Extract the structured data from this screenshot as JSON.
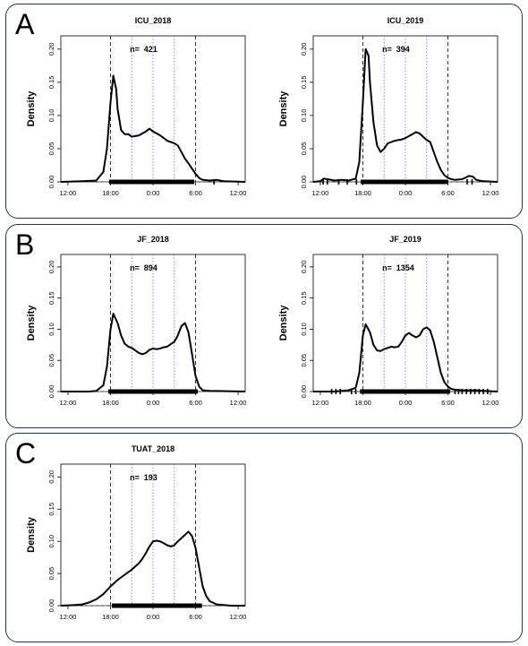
{
  "panels": [
    {
      "letter": "A",
      "charts": [
        0,
        1
      ]
    },
    {
      "letter": "B",
      "charts": [
        2,
        3
      ]
    },
    {
      "letter": "C",
      "charts": [
        4
      ]
    }
  ],
  "chart_data": [
    {
      "type": "line",
      "title": "ICU_2018",
      "n_label": "n=",
      "n_value": "421",
      "ylabel": "Density",
      "x_ticks": [
        "12:00",
        "18:00",
        "0:00",
        "6:00",
        "12:00"
      ],
      "x_tick_hours": [
        -12,
        -6,
        0,
        6,
        12
      ],
      "y_ticks": [
        "0.00",
        "0.05",
        "0.10",
        "0.15",
        "0.20"
      ],
      "y_tick_values": [
        0.0,
        0.05,
        0.1,
        0.15,
        0.2
      ],
      "xlim": [
        -13,
        13
      ],
      "ylim": [
        0,
        0.22
      ],
      "vlines_dashed_black": [
        -6,
        6
      ],
      "vlines_dotted_blue": [
        -3,
        0,
        3
      ],
      "x": [
        -13,
        -10,
        -8,
        -7,
        -6.5,
        -6,
        -5.6,
        -5.2,
        -5,
        -4.5,
        -4,
        -3.5,
        -3,
        -2.5,
        -2,
        -1.5,
        -1,
        -0.5,
        0,
        0.5,
        1,
        1.5,
        2,
        2.5,
        3,
        3.5,
        4,
        4.5,
        5,
        5.5,
        6,
        6.5,
        7,
        8,
        9,
        10,
        13
      ],
      "y": [
        0,
        0.001,
        0.002,
        0.015,
        0.05,
        0.12,
        0.16,
        0.14,
        0.11,
        0.078,
        0.072,
        0.072,
        0.068,
        0.069,
        0.07,
        0.073,
        0.076,
        0.08,
        0.076,
        0.073,
        0.07,
        0.066,
        0.062,
        0.06,
        0.058,
        0.055,
        0.045,
        0.035,
        0.028,
        0.02,
        0.012,
        0.006,
        0.003,
        0.002,
        0.003,
        0.001,
        0
      ],
      "rug": {
        "solid_from": -6.2,
        "solid_to": 5.8,
        "extra": [
          8.6
        ]
      }
    },
    {
      "type": "line",
      "title": "ICU_2019",
      "n_label": "n=",
      "n_value": "394",
      "ylabel": "Density",
      "x_ticks": [
        "12:00",
        "18:00",
        "0:00",
        "6:00",
        "12:00"
      ],
      "x_tick_hours": [
        -12,
        -6,
        0,
        6,
        12
      ],
      "y_ticks": [
        "0.00",
        "0.05",
        "0.10",
        "0.15",
        "0.20"
      ],
      "y_tick_values": [
        0.0,
        0.05,
        0.1,
        0.15,
        0.2
      ],
      "xlim": [
        -13,
        13
      ],
      "ylim": [
        0,
        0.22
      ],
      "vlines_dashed_black": [
        -6,
        6
      ],
      "vlines_dotted_blue": [
        -3,
        0,
        3
      ],
      "x": [
        -13,
        -12,
        -11.5,
        -11,
        -10,
        -9,
        -8,
        -7,
        -6.5,
        -6,
        -5.6,
        -5.2,
        -5,
        -4.5,
        -4,
        -3.5,
        -3,
        -2.5,
        -2,
        -1.5,
        -1,
        -0.5,
        0,
        0.5,
        1,
        1.5,
        2,
        2.5,
        3,
        3.5,
        4,
        4.5,
        5,
        5.5,
        6,
        6.5,
        7,
        8,
        9,
        9.5,
        10,
        11,
        13
      ],
      "y": [
        0,
        0.001,
        0.005,
        0.004,
        0.002,
        0.003,
        0.002,
        0.005,
        0.03,
        0.12,
        0.2,
        0.19,
        0.15,
        0.09,
        0.055,
        0.045,
        0.05,
        0.058,
        0.06,
        0.062,
        0.063,
        0.064,
        0.066,
        0.069,
        0.072,
        0.075,
        0.073,
        0.068,
        0.063,
        0.06,
        0.045,
        0.03,
        0.018,
        0.01,
        0.006,
        0.004,
        0.003,
        0.004,
        0.009,
        0.008,
        0.003,
        0.001,
        0
      ],
      "rug": {
        "solid_from": -6.3,
        "solid_to": 6.0,
        "extra": [
          -11.6,
          -11.0,
          -9.4,
          -8.2,
          -6.9,
          8.7,
          9.4
        ]
      }
    },
    {
      "type": "line",
      "title": "JF_2018",
      "n_label": "n=",
      "n_value": "894",
      "ylabel": "Density",
      "x_ticks": [
        "12:00",
        "18:00",
        "0:00",
        "6:00",
        "12:00"
      ],
      "x_tick_hours": [
        -12,
        -6,
        0,
        6,
        12
      ],
      "y_ticks": [
        "0.00",
        "0.05",
        "0.10",
        "0.15",
        "0.20"
      ],
      "y_tick_values": [
        0.0,
        0.05,
        0.1,
        0.15,
        0.2
      ],
      "xlim": [
        -13,
        13
      ],
      "ylim": [
        0,
        0.22
      ],
      "vlines_dashed_black": [
        -6,
        6
      ],
      "vlines_dotted_blue": [
        -3,
        0,
        3
      ],
      "x": [
        -13,
        -9,
        -8,
        -7,
        -6.5,
        -6,
        -5.6,
        -5,
        -4.5,
        -4,
        -3.5,
        -3,
        -2.5,
        -2,
        -1.5,
        -1,
        -0.5,
        0,
        0.5,
        1,
        1.5,
        2,
        2.5,
        3,
        3.5,
        4,
        4.5,
        5,
        5.5,
        6,
        6.5,
        7,
        8,
        13
      ],
      "y": [
        0,
        0,
        0.001,
        0.01,
        0.04,
        0.1,
        0.125,
        0.11,
        0.09,
        0.077,
        0.072,
        0.07,
        0.066,
        0.062,
        0.06,
        0.062,
        0.067,
        0.069,
        0.068,
        0.069,
        0.071,
        0.072,
        0.076,
        0.08,
        0.09,
        0.105,
        0.11,
        0.095,
        0.06,
        0.025,
        0.008,
        0.002,
        0.001,
        0
      ],
      "rug": {
        "solid_from": -6.3,
        "solid_to": 6.3,
        "extra": []
      }
    },
    {
      "type": "line",
      "title": "JF_2019",
      "n_label": "n=",
      "n_value": "1354",
      "ylabel": "Density",
      "x_ticks": [
        "12:00",
        "18:00",
        "0:00",
        "6:00",
        "12:00"
      ],
      "x_tick_hours": [
        -12,
        -6,
        0,
        6,
        12
      ],
      "y_ticks": [
        "0.00",
        "0.05",
        "0.10",
        "0.15",
        "0.20"
      ],
      "y_tick_values": [
        0.0,
        0.05,
        0.1,
        0.15,
        0.2
      ],
      "xlim": [
        -13,
        13
      ],
      "ylim": [
        0,
        0.22
      ],
      "vlines_dashed_black": [
        -6,
        6
      ],
      "vlines_dotted_blue": [
        -3,
        0,
        3
      ],
      "x": [
        -13,
        -10,
        -9,
        -8,
        -7,
        -6.5,
        -6,
        -5.6,
        -5,
        -4.5,
        -4,
        -3.5,
        -3,
        -2.5,
        -2,
        -1.5,
        -1,
        -0.5,
        0,
        0.5,
        1,
        1.5,
        2,
        2.5,
        3,
        3.5,
        4,
        4.5,
        5,
        5.5,
        6,
        6.5,
        7,
        8,
        9,
        10,
        11,
        13
      ],
      "y": [
        0,
        0,
        0.001,
        0.002,
        0.006,
        0.03,
        0.09,
        0.108,
        0.095,
        0.075,
        0.066,
        0.065,
        0.068,
        0.07,
        0.072,
        0.071,
        0.072,
        0.08,
        0.09,
        0.094,
        0.09,
        0.087,
        0.09,
        0.1,
        0.103,
        0.098,
        0.08,
        0.055,
        0.03,
        0.015,
        0.008,
        0.004,
        0.003,
        0.002,
        0.002,
        0.002,
        0.001,
        0
      ],
      "rug": {
        "solid_from": -6.4,
        "solid_to": 6.3,
        "extra": [
          -10.4,
          -9.8,
          -9.2,
          -7.6,
          -7.0,
          7.0,
          7.5,
          8.0,
          8.6,
          9.2,
          9.8,
          10.4,
          11.0,
          11.6
        ]
      }
    },
    {
      "type": "line",
      "title": "TUAT_2018",
      "n_label": "n=",
      "n_value": "193",
      "ylabel": "Density",
      "x_ticks": [
        "12:00",
        "18:00",
        "0:00",
        "6:00",
        "12:00"
      ],
      "x_tick_hours": [
        -12,
        -6,
        0,
        6,
        12
      ],
      "y_ticks": [
        "0.00",
        "0.05",
        "0.10",
        "0.15",
        "0.20"
      ],
      "y_tick_values": [
        0.0,
        0.05,
        0.1,
        0.15,
        0.2
      ],
      "xlim": [
        -13,
        13
      ],
      "ylim": [
        0,
        0.22
      ],
      "vlines_dashed_black": [
        -6,
        6
      ],
      "vlines_dotted_blue": [
        -3,
        0,
        3
      ],
      "x": [
        -13,
        -11,
        -10,
        -9,
        -8,
        -7,
        -6,
        -5,
        -4,
        -3,
        -2,
        -1.5,
        -1,
        -0.5,
        0,
        0.5,
        1,
        1.5,
        2,
        2.5,
        3,
        3.5,
        4,
        4.5,
        5,
        5.5,
        6,
        6.5,
        7,
        7.5,
        8,
        9,
        10,
        11,
        13
      ],
      "y": [
        0,
        0.001,
        0.002,
        0.005,
        0.01,
        0.018,
        0.03,
        0.04,
        0.048,
        0.056,
        0.066,
        0.073,
        0.082,
        0.092,
        0.1,
        0.101,
        0.1,
        0.097,
        0.094,
        0.092,
        0.094,
        0.1,
        0.105,
        0.11,
        0.115,
        0.108,
        0.09,
        0.06,
        0.03,
        0.015,
        0.007,
        0.002,
        0.001,
        0,
        0
      ],
      "rug": {
        "solid_from": -5.8,
        "solid_to": 6.9,
        "extra": []
      }
    }
  ]
}
